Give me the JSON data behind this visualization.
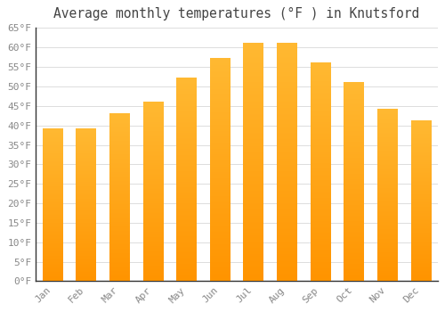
{
  "title": "Average monthly temperatures (°F ) in Knutsford",
  "months": [
    "Jan",
    "Feb",
    "Mar",
    "Apr",
    "May",
    "Jun",
    "Jul",
    "Aug",
    "Sep",
    "Oct",
    "Nov",
    "Dec"
  ],
  "values": [
    39,
    39,
    43,
    46,
    52,
    57,
    61,
    61,
    56,
    51,
    44,
    41
  ],
  "bar_color_top": "#FFB733",
  "bar_color_bottom": "#FF9900",
  "background_color": "#FFFFFF",
  "grid_color": "#DDDDDD",
  "text_color": "#888888",
  "title_color": "#444444",
  "ylim": [
    0,
    65
  ],
  "yticks": [
    0,
    5,
    10,
    15,
    20,
    25,
    30,
    35,
    40,
    45,
    50,
    55,
    60,
    65
  ],
  "ytick_labels": [
    "0°F",
    "5°F",
    "10°F",
    "15°F",
    "20°F",
    "25°F",
    "30°F",
    "35°F",
    "40°F",
    "45°F",
    "50°F",
    "55°F",
    "60°F",
    "65°F"
  ],
  "title_fontsize": 10.5,
  "tick_fontsize": 8,
  "bar_width": 0.6,
  "gradient_steps": 100
}
